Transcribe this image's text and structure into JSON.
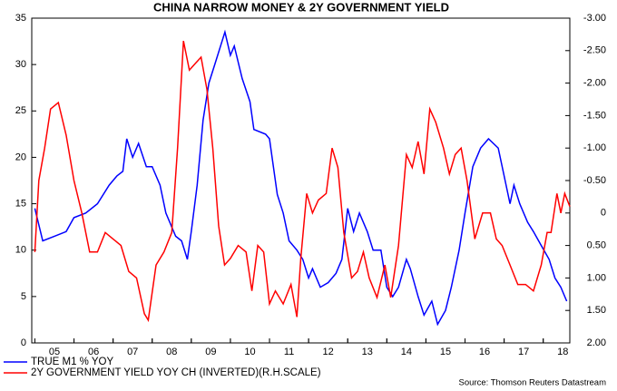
{
  "chart_data": {
    "type": "line",
    "title": "CHINA NARROW MONEY & 2Y GOVERNMENT YIELD",
    "source": "Source: Thomson Reuters Datastream",
    "xlim": [
      2004.92,
      2018.68
    ],
    "xticks": [
      {
        "value": 2005.5,
        "label": "05"
      },
      {
        "value": 2006.5,
        "label": "06"
      },
      {
        "value": 2007.5,
        "label": "07"
      },
      {
        "value": 2008.5,
        "label": "08"
      },
      {
        "value": 2009.5,
        "label": "09"
      },
      {
        "value": 2010.5,
        "label": "10"
      },
      {
        "value": 2011.5,
        "label": "11"
      },
      {
        "value": 2012.5,
        "label": "12"
      },
      {
        "value": 2013.5,
        "label": "13"
      },
      {
        "value": 2014.5,
        "label": "14"
      },
      {
        "value": 2015.5,
        "label": "15"
      },
      {
        "value": 2016.5,
        "label": "16"
      },
      {
        "value": 2017.5,
        "label": "17"
      },
      {
        "value": 2018.5,
        "label": "18"
      }
    ],
    "ylim": [
      0,
      35
    ],
    "yticks": [
      0,
      5,
      10,
      15,
      20,
      25,
      30,
      35
    ],
    "y2lim": [
      2,
      -3
    ],
    "y2ticks": [
      {
        "value": -3,
        "label": "-3.00"
      },
      {
        "value": -2.5,
        "label": "-2.50"
      },
      {
        "value": -2,
        "label": "-2.00"
      },
      {
        "value": -1.5,
        "label": "-1.50"
      },
      {
        "value": -1,
        "label": "-1.00"
      },
      {
        "value": -0.5,
        "label": "-0.50"
      },
      0,
      {
        "value": 0.5,
        "label": "0.50"
      },
      {
        "value": 1,
        "label": "1.00"
      },
      {
        "value": 1.5,
        "label": "1.50"
      },
      {
        "value": 2,
        "label": "2.00"
      }
    ],
    "series": [
      {
        "name": "TRUE M1 % YOY",
        "color": "#0000ff",
        "x": [
          2005.0,
          2005.2,
          2005.5,
          2005.8,
          2006.0,
          2006.3,
          2006.6,
          2006.9,
          2007.1,
          2007.25,
          2007.35,
          2007.5,
          2007.65,
          2007.85,
          2008.0,
          2008.2,
          2008.35,
          2008.6,
          2008.75,
          2008.9,
          2009.0,
          2009.15,
          2009.3,
          2009.45,
          2009.6,
          2009.86,
          2010.0,
          2010.1,
          2010.3,
          2010.5,
          2010.6,
          2010.9,
          2011.0,
          2011.2,
          2011.35,
          2011.5,
          2011.7,
          2011.85,
          2012.0,
          2012.1,
          2012.3,
          2012.5,
          2012.7,
          2012.85,
          2013.0,
          2013.15,
          2013.3,
          2013.5,
          2013.65,
          2013.85,
          2014.0,
          2014.15,
          2014.3,
          2014.5,
          2014.6,
          2014.8,
          2014.95,
          2015.15,
          2015.3,
          2015.5,
          2015.65,
          2015.85,
          2016.0,
          2016.2,
          2016.4,
          2016.6,
          2016.85,
          2017.0,
          2017.15,
          2017.25,
          2017.4,
          2017.6,
          2017.75,
          2017.95,
          2018.15,
          2018.3,
          2018.45,
          2018.6
        ],
        "values": [
          14.5,
          11,
          11.5,
          12,
          13.5,
          14,
          15,
          17,
          18,
          18.5,
          22,
          20,
          21.5,
          19,
          19,
          17,
          14,
          11.5,
          11,
          9,
          12,
          17,
          24,
          28,
          30,
          33.5,
          31,
          32,
          28.5,
          26,
          23,
          22.5,
          22,
          16,
          14,
          11,
          10,
          9,
          7,
          8,
          6,
          6.5,
          7.5,
          9,
          14.5,
          12,
          14,
          12,
          10,
          10,
          6,
          5,
          6,
          9,
          8,
          5,
          3,
          4.5,
          2,
          3.5,
          6,
          10,
          14,
          19,
          21,
          22,
          21,
          18,
          15,
          17,
          15,
          13,
          12,
          10.5,
          9,
          7,
          6,
          4.5
        ]
      },
      {
        "name": "2Y GOVERNMENT YIELD YOY CH (INVERTED)(R.H.SCALE)",
        "color": "#ff0000",
        "axis": "y2",
        "x": [
          2005.0,
          2005.1,
          2005.25,
          2005.4,
          2005.6,
          2005.8,
          2006.0,
          2006.2,
          2006.4,
          2006.6,
          2006.8,
          2007.0,
          2007.2,
          2007.4,
          2007.6,
          2007.8,
          2007.9,
          2008.1,
          2008.3,
          2008.5,
          2008.65,
          2008.8,
          2008.95,
          2009.1,
          2009.25,
          2009.4,
          2009.55,
          2009.7,
          2009.85,
          2010.0,
          2010.2,
          2010.4,
          2010.55,
          2010.7,
          2010.85,
          2011.0,
          2011.15,
          2011.35,
          2011.55,
          2011.7,
          2011.8,
          2011.95,
          2012.1,
          2012.25,
          2012.45,
          2012.6,
          2012.75,
          2012.9,
          2013.1,
          2013.25,
          2013.4,
          2013.55,
          2013.75,
          2013.95,
          2014.1,
          2014.3,
          2014.5,
          2014.65,
          2014.8,
          2014.95,
          2015.1,
          2015.25,
          2015.45,
          2015.6,
          2015.75,
          2015.9,
          2016.05,
          2016.25,
          2016.45,
          2016.65,
          2016.8,
          2016.95,
          2017.15,
          2017.35,
          2017.55,
          2017.75,
          2017.95,
          2018.1,
          2018.2,
          2018.35,
          2018.45,
          2018.55,
          2018.68
        ],
        "values": [
          0.6,
          -0.5,
          -1.0,
          -1.6,
          -1.7,
          -1.2,
          -0.5,
          0.0,
          0.6,
          0.6,
          0.3,
          0.4,
          0.5,
          0.9,
          1.0,
          1.55,
          1.65,
          0.8,
          0.6,
          0.3,
          -1.0,
          -2.65,
          -2.2,
          -2.3,
          -2.4,
          -1.9,
          -1.0,
          0.2,
          0.8,
          0.7,
          0.5,
          0.6,
          1.2,
          0.5,
          0.6,
          1.4,
          1.2,
          1.4,
          1.1,
          1.6,
          0.7,
          -0.3,
          0.0,
          -0.2,
          -0.3,
          -1.0,
          -0.7,
          0.3,
          1.0,
          0.9,
          0.6,
          1.0,
          1.3,
          0.8,
          1.3,
          0.5,
          -0.9,
          -0.7,
          -1.1,
          -0.6,
          -1.6,
          -1.4,
          -1.0,
          -0.6,
          -0.9,
          -1.0,
          -0.5,
          0.4,
          0.0,
          0.0,
          0.4,
          0.5,
          0.8,
          1.1,
          1.1,
          1.2,
          0.8,
          0.3,
          0.3,
          -0.3,
          0.0,
          -0.3,
          -0.1
        ]
      }
    ]
  }
}
